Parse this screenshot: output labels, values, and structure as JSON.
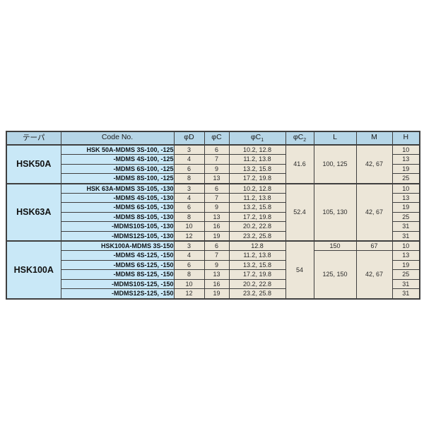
{
  "colors": {
    "header-bg": "#b6d6e7",
    "group-bg": "#c9e8f7",
    "value-bg": "#ece6d8",
    "border": "#3f3f3f"
  },
  "table": {
    "columns": [
      {
        "label": "テーパ"
      },
      {
        "label": "Code No."
      },
      {
        "label": "φD"
      },
      {
        "label": "φC"
      },
      {
        "label": "φC",
        "sub": "1"
      },
      {
        "label": "φC",
        "sub": "2"
      },
      {
        "label": "L"
      },
      {
        "label": "M"
      },
      {
        "label": "H"
      }
    ],
    "groups": [
      {
        "taper": "HSK50A",
        "phiC2": "41.6",
        "l_cells": [
          {
            "value": "100, 125",
            "span": 4
          }
        ],
        "m_cells": [
          {
            "value": "42, 67",
            "span": 4
          }
        ],
        "rows": [
          {
            "code": "HSK 50A-MDMS 3S-100, -125",
            "phiD": "3",
            "phiC": "6",
            "phiC1": "10.2, 12.8",
            "H": "10"
          },
          {
            "code": "-MDMS 4S-100, -125",
            "phiD": "4",
            "phiC": "7",
            "phiC1": "11.2, 13.8",
            "H": "13"
          },
          {
            "code": "-MDMS 6S-100, -125",
            "phiD": "6",
            "phiC": "9",
            "phiC1": "13.2, 15.8",
            "H": "19"
          },
          {
            "code": "-MDMS 8S-100, -125",
            "phiD": "8",
            "phiC": "13",
            "phiC1": "17.2, 19.8",
            "H": "25"
          }
        ]
      },
      {
        "taper": "HSK63A",
        "phiC2": "52.4",
        "l_cells": [
          {
            "value": "105, 130",
            "span": 6
          }
        ],
        "m_cells": [
          {
            "value": "42, 67",
            "span": 6
          }
        ],
        "rows": [
          {
            "code": "HSK 63A-MDMS 3S-105, -130",
            "phiD": "3",
            "phiC": "6",
            "phiC1": "10.2, 12.8",
            "H": "10"
          },
          {
            "code": "-MDMS 4S-105, -130",
            "phiD": "4",
            "phiC": "7",
            "phiC1": "11.2, 13.8",
            "H": "13"
          },
          {
            "code": "-MDMS 6S-105, -130",
            "phiD": "6",
            "phiC": "9",
            "phiC1": "13.2, 15.8",
            "H": "19"
          },
          {
            "code": "-MDMS 8S-105, -130",
            "phiD": "8",
            "phiC": "13",
            "phiC1": "17.2, 19.8",
            "H": "25"
          },
          {
            "code": "-MDMS10S-105, -130",
            "phiD": "10",
            "phiC": "16",
            "phiC1": "20.2, 22.8",
            "H": "31"
          },
          {
            "code": "-MDMS12S-105, -130",
            "phiD": "12",
            "phiC": "19",
            "phiC1": "23.2, 25.8",
            "H": "31"
          }
        ]
      },
      {
        "taper": "HSK100A",
        "phiC2": "54",
        "l_cells": [
          {
            "value": "150",
            "span": 1
          },
          {
            "value": "125, 150",
            "span": 5
          }
        ],
        "m_cells": [
          {
            "value": "67",
            "span": 1
          },
          {
            "value": "42, 67",
            "span": 5
          }
        ],
        "rows": [
          {
            "code": "HSK100A-MDMS 3S-150",
            "phiD": "3",
            "phiC": "6",
            "phiC1": "12.8",
            "H": "10"
          },
          {
            "code": "-MDMS 4S-125, -150",
            "phiD": "4",
            "phiC": "7",
            "phiC1": "11.2, 13.8",
            "H": "13"
          },
          {
            "code": "-MDMS 6S-125, -150",
            "phiD": "6",
            "phiC": "9",
            "phiC1": "13.2, 15.8",
            "H": "19"
          },
          {
            "code": "-MDMS 8S-125, -150",
            "phiD": "8",
            "phiC": "13",
            "phiC1": "17.2, 19.8",
            "H": "25"
          },
          {
            "code": "-MDMS10S-125, -150",
            "phiD": "10",
            "phiC": "16",
            "phiC1": "20.2, 22.8",
            "H": "31"
          },
          {
            "code": "-MDMS12S-125, -150",
            "phiD": "12",
            "phiC": "19",
            "phiC1": "23.2, 25.8",
            "H": "31"
          }
        ]
      }
    ]
  }
}
